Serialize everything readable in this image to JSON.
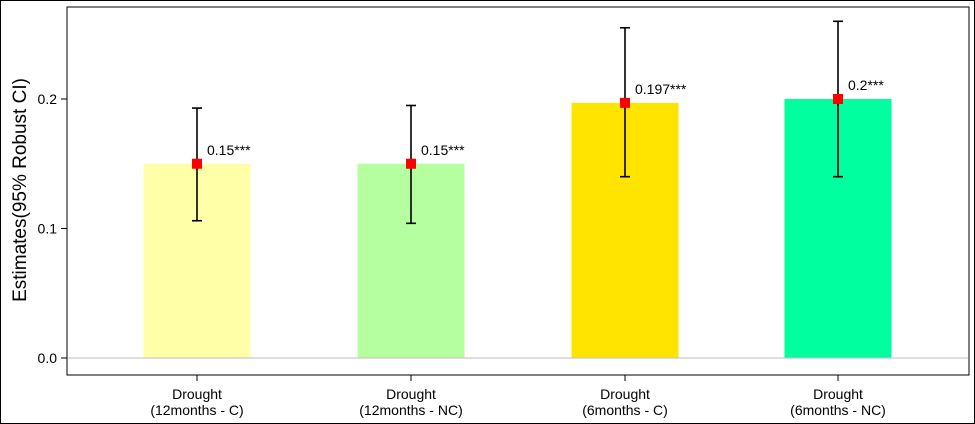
{
  "chart_data": {
    "type": "bar",
    "title": "",
    "xlabel": "",
    "ylabel": "Estimates(95% Robust CI)",
    "ylim": [
      -0.012,
      0.27
    ],
    "yticks": [
      0.0,
      0.1,
      0.2
    ],
    "ytick_labels": [
      "0.0",
      "0.1",
      "0.2"
    ],
    "reference_line": 0.0,
    "grid": false,
    "legend": "none",
    "categories": [
      [
        "Drought",
        "(12months - C)"
      ],
      [
        "Drought",
        "(12months - NC)"
      ],
      [
        "Drought",
        "(6months - C)"
      ],
      [
        "Drought",
        "(6months - NC)"
      ]
    ],
    "values": [
      0.15,
      0.15,
      0.197,
      0.2
    ],
    "ci_lower": [
      0.106,
      0.104,
      0.14,
      0.14
    ],
    "ci_upper": [
      0.193,
      0.195,
      0.255,
      0.26
    ],
    "data_labels": [
      "0.15***",
      "0.15***",
      "0.197***",
      "0.2***"
    ],
    "bar_colors": [
      "#FFFFA8",
      "#B6FFA0",
      "#FFE400",
      "#00FF9F"
    ],
    "point_color": "#FF0000",
    "errorbar_color": "#000000",
    "zero_line_color": "#BEBEBE"
  }
}
